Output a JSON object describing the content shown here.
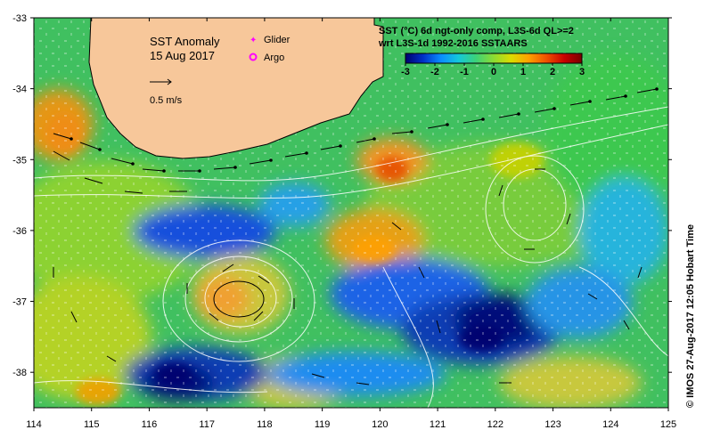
{
  "map_title": "SST Anomaly",
  "map_date": "15 Aug 2017",
  "legend": {
    "glider_label": "Glider",
    "argo_label": "Argo",
    "glider_color": "#ff00ff",
    "argo_color": "#ff00ff"
  },
  "scale_label": "0.5 m/s",
  "colorbar": {
    "title_line1": "SST (°C) 6d ngt-only comp, L3S-6d QL>=2",
    "title_line2": "wrt L3S-1d 1992-2016 SSTAARS",
    "ticks": [
      "-3",
      "-2",
      "-1",
      "0",
      "1",
      "2",
      "3"
    ],
    "tick_values": [
      -3,
      -2,
      -1,
      0,
      1,
      2,
      3
    ],
    "colors": [
      "#00006e",
      "#0030c8",
      "#0a8cff",
      "#14c8dc",
      "#3cd278",
      "#8cdc32",
      "#dcdc00",
      "#ffa000",
      "#f05000",
      "#c80000",
      "#780000"
    ]
  },
  "axes": {
    "lon_ticks": [
      "114",
      "115",
      "116",
      "117",
      "118",
      "119",
      "120",
      "121",
      "122",
      "123",
      "124",
      "125"
    ],
    "lon_values": [
      114,
      115,
      116,
      117,
      118,
      119,
      120,
      121,
      122,
      123,
      124,
      125
    ],
    "lat_ticks": [
      "-33",
      "-34",
      "-35",
      "-36",
      "-37",
      "-38"
    ],
    "lat_values": [
      -33,
      -34,
      -35,
      -36,
      -37,
      -38
    ],
    "lon_range": [
      114,
      125
    ],
    "lat_range": [
      -38.5,
      -33
    ]
  },
  "colors": {
    "land": "#f7c79a",
    "missing": "#ffffff"
  },
  "credit": "© IMOS 27-Aug-2017 12:05 Hobart Time"
}
